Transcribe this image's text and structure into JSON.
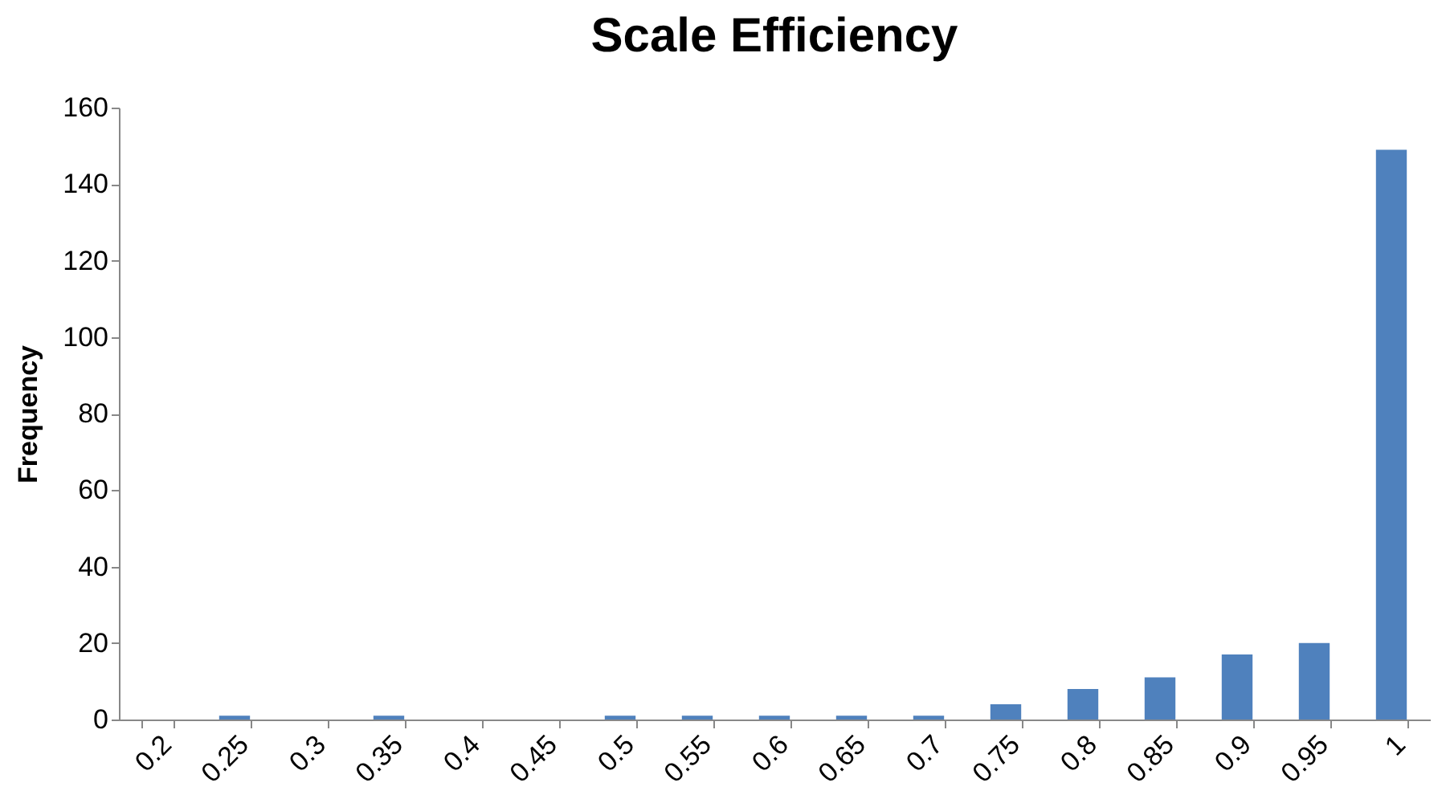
{
  "chart_data": {
    "type": "bar",
    "title": "Scale Efficiency",
    "ylabel": "Frequency",
    "categories": [
      "0.2",
      "0.25",
      "0.3",
      "0.35",
      "0.4",
      "0.45",
      "0.5",
      "0.55",
      "0.6",
      "0.65",
      "0.7",
      "0.75",
      "0.8",
      "0.85",
      "0.9",
      "0.95",
      "1"
    ],
    "values": [
      0,
      1,
      0,
      1,
      0,
      0,
      1,
      1,
      1,
      1,
      1,
      4,
      8,
      11,
      17,
      20,
      149
    ],
    "color": "#4f81bd",
    "ylim": [
      0,
      160
    ],
    "yticks": [
      0,
      20,
      40,
      60,
      80,
      100,
      120,
      140,
      160
    ],
    "grid": false
  }
}
